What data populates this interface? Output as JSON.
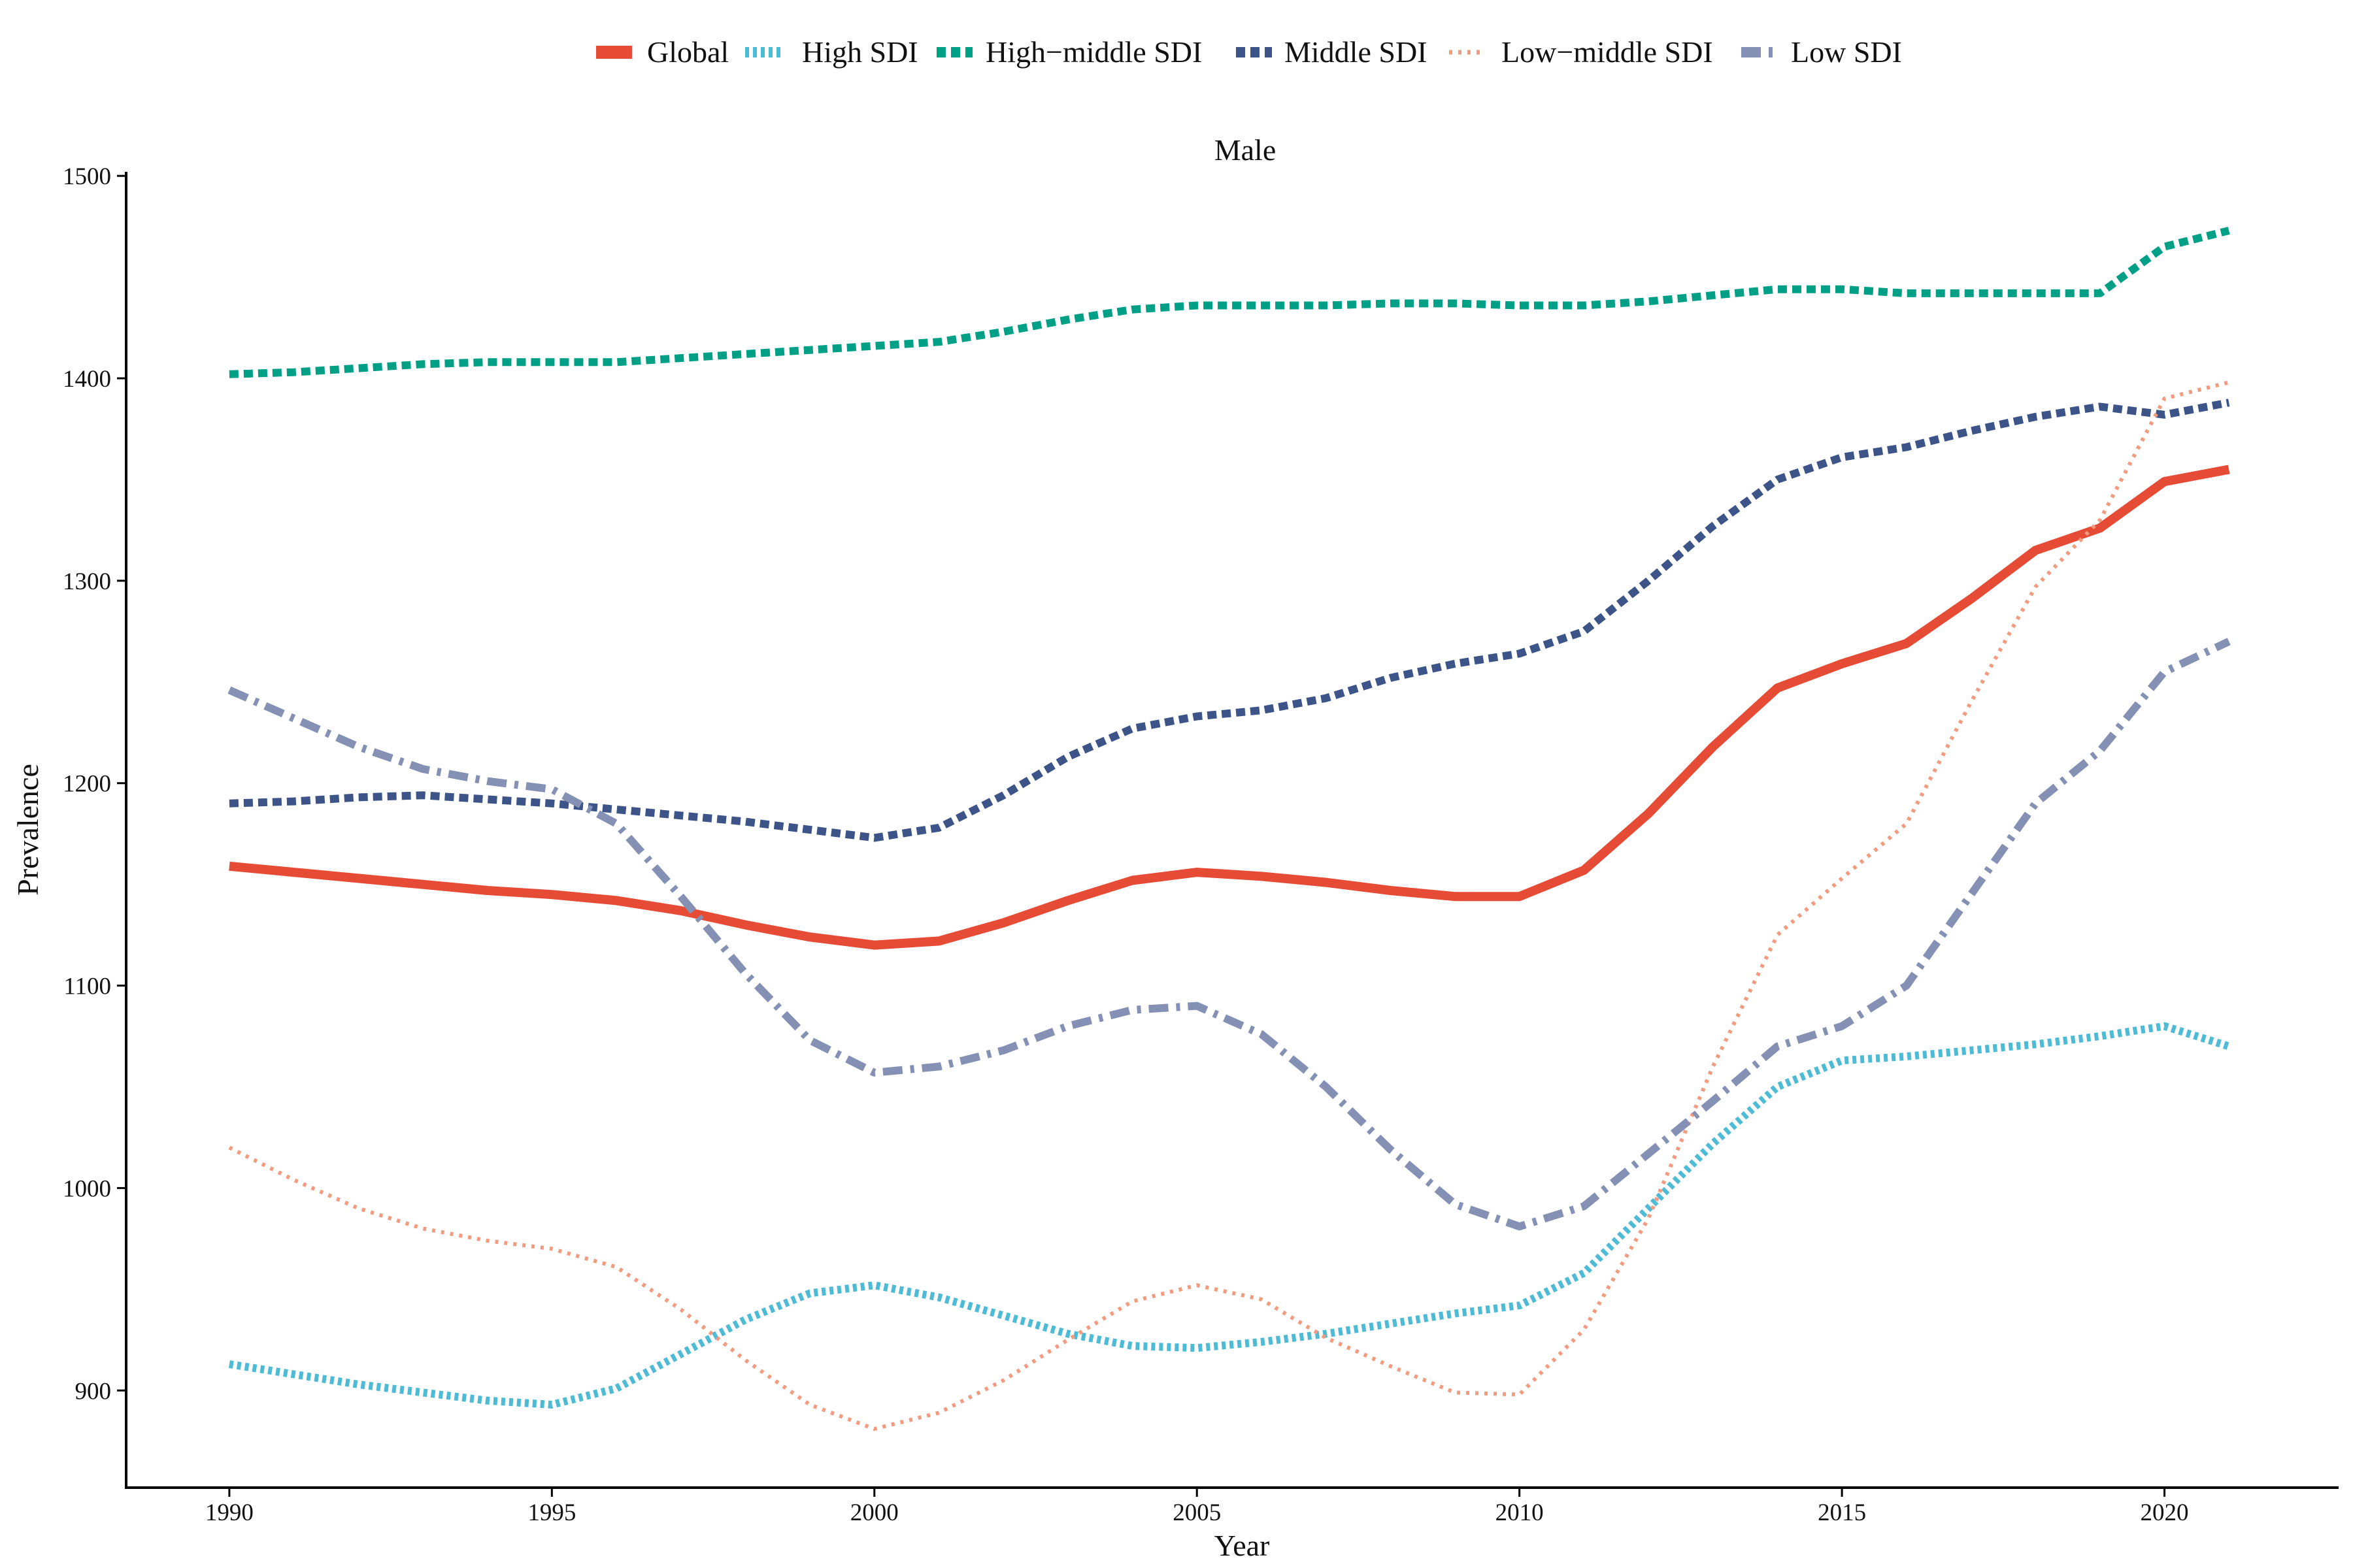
{
  "chart_data": {
    "type": "line",
    "title": "Male",
    "xlabel": "Year",
    "ylabel": "Prevalence",
    "xlim": [
      1988.4,
      2022.7
    ],
    "ylim": [
      852,
      1502
    ],
    "xticks": [
      1990,
      1995,
      2000,
      2005,
      2010,
      2015,
      2020
    ],
    "yticks": [
      900,
      1000,
      1100,
      1200,
      1300,
      1400,
      1500
    ],
    "grid": false,
    "legend_position": "top",
    "x": [
      1990,
      1991,
      1992,
      1993,
      1994,
      1995,
      1996,
      1997,
      1998,
      1999,
      2000,
      2001,
      2002,
      2003,
      2004,
      2005,
      2006,
      2007,
      2008,
      2009,
      2010,
      2011,
      2012,
      2013,
      2014,
      2015,
      2016,
      2017,
      2018,
      2019,
      2020,
      2021
    ],
    "series": [
      {
        "name": "Global",
        "color": "#e64b35",
        "style": "solid",
        "values": [
          1159,
          1156,
          1153,
          1150,
          1147,
          1145,
          1142,
          1137,
          1130,
          1124,
          1120,
          1122,
          1131,
          1142,
          1152,
          1156,
          1154,
          1151,
          1147,
          1144,
          1144,
          1157,
          1185,
          1218,
          1247,
          1259,
          1269,
          1291,
          1315,
          1326,
          1349,
          1355
        ]
      },
      {
        "name": "High SDI",
        "color": "#4dbbd5",
        "style": "dotted",
        "values": [
          913,
          908,
          903,
          899,
          895,
          893,
          901,
          918,
          935,
          948,
          952,
          946,
          937,
          928,
          922,
          921,
          924,
          928,
          933,
          938,
          942,
          958,
          990,
          1022,
          1050,
          1063,
          1065,
          1068,
          1071,
          1075,
          1080,
          1070
        ]
      },
      {
        "name": "High−middle SDI",
        "color": "#00a087",
        "style": "dashed",
        "values": [
          1402,
          1403,
          1405,
          1407,
          1408,
          1408,
          1408,
          1410,
          1412,
          1414,
          1416,
          1418,
          1423,
          1429,
          1434,
          1436,
          1436,
          1436,
          1437,
          1437,
          1436,
          1436,
          1438,
          1441,
          1444,
          1444,
          1442,
          1442,
          1442,
          1442,
          1465,
          1473
        ]
      },
      {
        "name": "Middle SDI",
        "color": "#3c5488",
        "style": "dashed",
        "values": [
          1190,
          1191,
          1193,
          1194,
          1192,
          1190,
          1187,
          1184,
          1181,
          1177,
          1173,
          1178,
          1194,
          1213,
          1227,
          1233,
          1236,
          1242,
          1252,
          1259,
          1264,
          1275,
          1300,
          1327,
          1350,
          1361,
          1366,
          1374,
          1381,
          1386,
          1382,
          1388
        ]
      },
      {
        "name": "Low−middle SDI",
        "color": "#f39b7f",
        "style": "fine-dotted",
        "values": [
          1020,
          1004,
          990,
          980,
          974,
          970,
          961,
          940,
          915,
          893,
          881,
          889,
          905,
          925,
          944,
          952,
          945,
          926,
          912,
          899,
          898,
          930,
          985,
          1060,
          1125,
          1153,
          1180,
          1240,
          1297,
          1330,
          1390,
          1398
        ]
      },
      {
        "name": "Low SDI",
        "color": "#8491b4",
        "style": "dashdot",
        "values": [
          1246,
          1232,
          1218,
          1207,
          1201,
          1197,
          1180,
          1144,
          1106,
          1073,
          1057,
          1060,
          1068,
          1080,
          1088,
          1090,
          1076,
          1050,
          1019,
          992,
          981,
          991,
          1017,
          1043,
          1070,
          1080,
          1100,
          1145,
          1190,
          1216,
          1255,
          1270
        ]
      }
    ]
  }
}
